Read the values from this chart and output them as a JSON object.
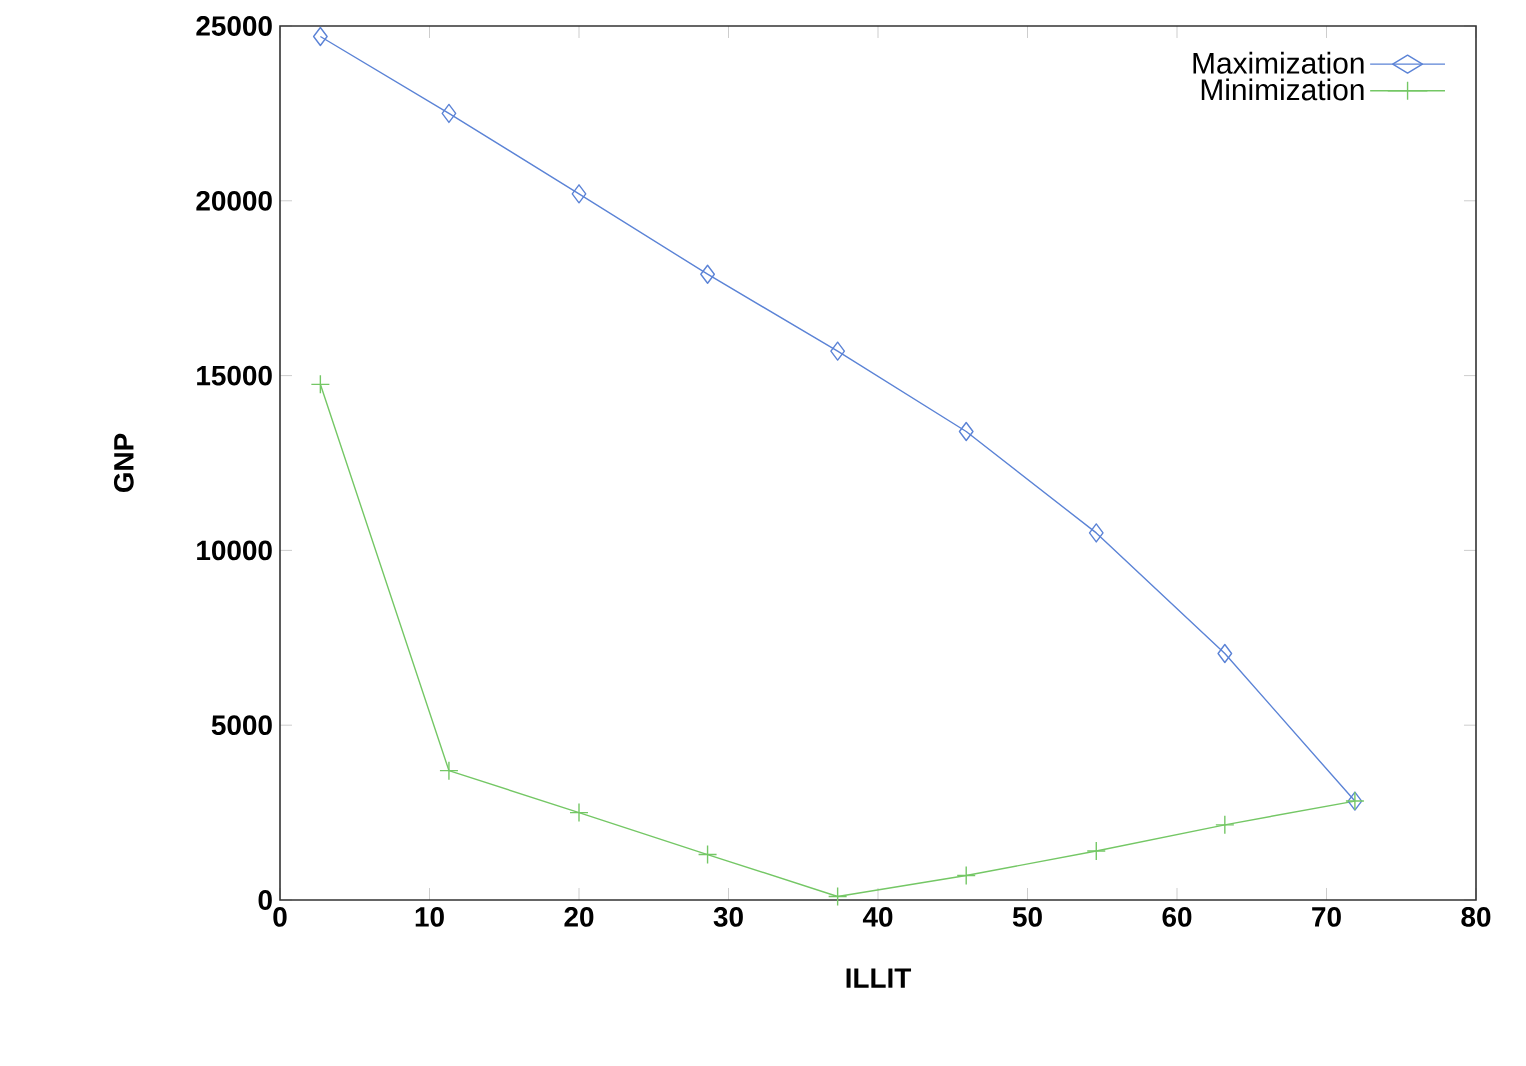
{
  "chart_data": {
    "type": "line",
    "xlabel": "ILLIT",
    "ylabel": "GNP",
    "xlim": [
      0,
      80
    ],
    "xticks": [
      0,
      10,
      20,
      30,
      40,
      50,
      60,
      70,
      80
    ],
    "ylim": [
      0,
      25000
    ],
    "yticks": [
      0,
      5000,
      10000,
      15000,
      20000,
      25000
    ],
    "legend": "top right",
    "series": [
      {
        "name": "Maximization",
        "color": "#5b83d6",
        "marker": "diamond",
        "x": [
          2.7,
          11.3,
          20,
          28.6,
          37.3,
          45.9,
          54.6,
          63.2,
          71.9
        ],
        "values": [
          24700,
          22500,
          20200,
          17900,
          15700,
          13400,
          10500,
          7050,
          2830
        ]
      },
      {
        "name": "Minimization",
        "color": "#74c765",
        "marker": "cross",
        "x": [
          2.7,
          11.3,
          20,
          28.6,
          37.3,
          45.9,
          54.6,
          63.2,
          71.9
        ],
        "values": [
          14750,
          3700,
          2500,
          1300,
          100,
          700,
          1400,
          2150,
          2830
        ]
      }
    ]
  }
}
